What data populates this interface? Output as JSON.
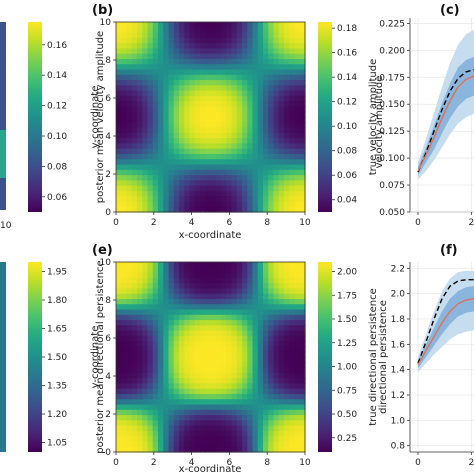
{
  "chart_data": [
    {
      "type": "colorbar",
      "label": "posterior mean velocity amplitude",
      "ticks": [
        "0.06",
        "0.08",
        "0.10",
        "0.12",
        "0.14",
        "0.16"
      ],
      "range": [
        0.05,
        0.175
      ],
      "colormap": "viridis",
      "x_tick_visible": "10"
    },
    {
      "panel": "(b)",
      "type": "heatmap",
      "xlabel": "x-coordinate",
      "ylabel": "y-coordinate",
      "xticks": [
        "0",
        "2",
        "4",
        "6",
        "8",
        "10"
      ],
      "yticks": [
        "0",
        "2",
        "4",
        "6",
        "8",
        "10"
      ],
      "xlim": [
        0,
        10
      ],
      "ylim": [
        0,
        10
      ],
      "colormap": "viridis",
      "pattern": "high top-left and bottom-right, low top-right and bottom-left",
      "colorbar": {
        "label": "true velocity amplitude",
        "ticks": [
          "0.04",
          "0.06",
          "0.08",
          "0.10",
          "0.12",
          "0.14",
          "0.16",
          "0.18"
        ],
        "range": [
          0.03,
          0.185
        ]
      }
    },
    {
      "panel": "(c)",
      "type": "line",
      "ylabel": "velocity amplitude",
      "yticks": [
        "0.050",
        "0.075",
        "0.100",
        "0.125",
        "0.150",
        "0.175",
        "0.200",
        "0.225"
      ],
      "ylim": [
        0.05,
        0.23
      ],
      "xticks_visible": [
        "0",
        "2"
      ],
      "series": [
        {
          "x": [
            0,
            0.3,
            0.6,
            0.9,
            1.2,
            1.5,
            1.8,
            2.1
          ],
          "values": [
            0.087,
            0.105,
            0.125,
            0.145,
            0.162,
            0.174,
            0.18,
            0.182
          ]
        },
        {
          "x": [
            0,
            0.3,
            0.6,
            0.9,
            1.2,
            1.5,
            1.8,
            2.1
          ],
          "values": [
            0.088,
            0.103,
            0.119,
            0.137,
            0.153,
            0.166,
            0.173,
            0.176
          ]
        }
      ],
      "bands": [
        {
          "x": [
            0,
            0.3,
            0.6,
            0.9,
            1.2,
            1.5,
            1.8,
            2.1
          ],
          "lower": [
            0.08,
            0.088,
            0.098,
            0.11,
            0.122,
            0.132,
            0.138,
            0.141
          ],
          "upper": [
            0.096,
            0.118,
            0.142,
            0.166,
            0.188,
            0.205,
            0.215,
            0.219
          ]
        },
        {
          "x": [
            0,
            0.3,
            0.6,
            0.9,
            1.2,
            1.5,
            1.8,
            2.1
          ],
          "lower": [
            0.084,
            0.096,
            0.108,
            0.123,
            0.137,
            0.148,
            0.155,
            0.158
          ],
          "upper": [
            0.092,
            0.11,
            0.13,
            0.151,
            0.169,
            0.184,
            0.191,
            0.194
          ]
        }
      ]
    },
    {
      "type": "colorbar",
      "label": "posterior mean directional persistence",
      "ticks": [
        "1.05",
        "1.20",
        "1.35",
        "1.50",
        "1.65",
        "1.80",
        "1.95"
      ],
      "range": [
        1.0,
        2.0
      ],
      "colormap": "viridis"
    },
    {
      "panel": "(e)",
      "type": "heatmap",
      "xlabel": "x-coordinate",
      "ylabel": "y-coordinate",
      "xticks": [
        "0",
        "2",
        "4",
        "6",
        "8",
        "10"
      ],
      "yticks": [
        "0",
        "2",
        "4",
        "6",
        "8",
        "10"
      ],
      "xlim": [
        0,
        10
      ],
      "ylim": [
        0,
        10
      ],
      "colormap": "viridis",
      "pattern": "high top-left and bottom-right, low top-right and bottom-left",
      "colorbar": {
        "label": "true directional persistence",
        "ticks": [
          "0.25",
          "0.50",
          "0.75",
          "1.00",
          "1.25",
          "1.50",
          "1.75",
          "2.00"
        ],
        "range": [
          0.1,
          2.1
        ]
      }
    },
    {
      "panel": "(f)",
      "type": "line",
      "ylabel": "directional persistence",
      "yticks": [
        "0.8",
        "1.0",
        "1.2",
        "1.4",
        "1.6",
        "1.8",
        "2.0",
        "2.2"
      ],
      "ylim": [
        0.75,
        2.25
      ],
      "xticks_visible": [
        "0",
        "2"
      ],
      "series": [
        {
          "x": [
            0,
            0.3,
            0.6,
            0.9,
            1.2,
            1.5,
            1.8,
            2.1
          ],
          "values": [
            1.45,
            1.62,
            1.8,
            1.96,
            2.06,
            2.1,
            2.11,
            2.11
          ]
        },
        {
          "x": [
            0,
            0.3,
            0.6,
            0.9,
            1.2,
            1.5,
            1.8,
            2.1
          ],
          "values": [
            1.44,
            1.55,
            1.66,
            1.77,
            1.86,
            1.92,
            1.95,
            1.96
          ]
        }
      ],
      "bands": [
        {
          "x": [
            0,
            0.3,
            0.6,
            0.9,
            1.2,
            1.5,
            1.8,
            2.1
          ],
          "lower": [
            1.38,
            1.45,
            1.52,
            1.58,
            1.64,
            1.68,
            1.7,
            1.71
          ],
          "upper": [
            1.5,
            1.68,
            1.86,
            2.02,
            2.12,
            2.17,
            2.18,
            2.18
          ]
        },
        {
          "x": [
            0,
            0.3,
            0.6,
            0.9,
            1.2,
            1.5,
            1.8,
            2.1
          ],
          "lower": [
            1.41,
            1.5,
            1.59,
            1.68,
            1.76,
            1.82,
            1.85,
            1.86
          ],
          "upper": [
            1.47,
            1.6,
            1.73,
            1.86,
            1.96,
            2.02,
            2.05,
            2.06
          ]
        }
      ]
    }
  ],
  "colors": {
    "band_outer": "#c6dcef",
    "band_inner": "#8ab6dd",
    "mean_line": "#e0705a",
    "true_line": "#000000"
  }
}
